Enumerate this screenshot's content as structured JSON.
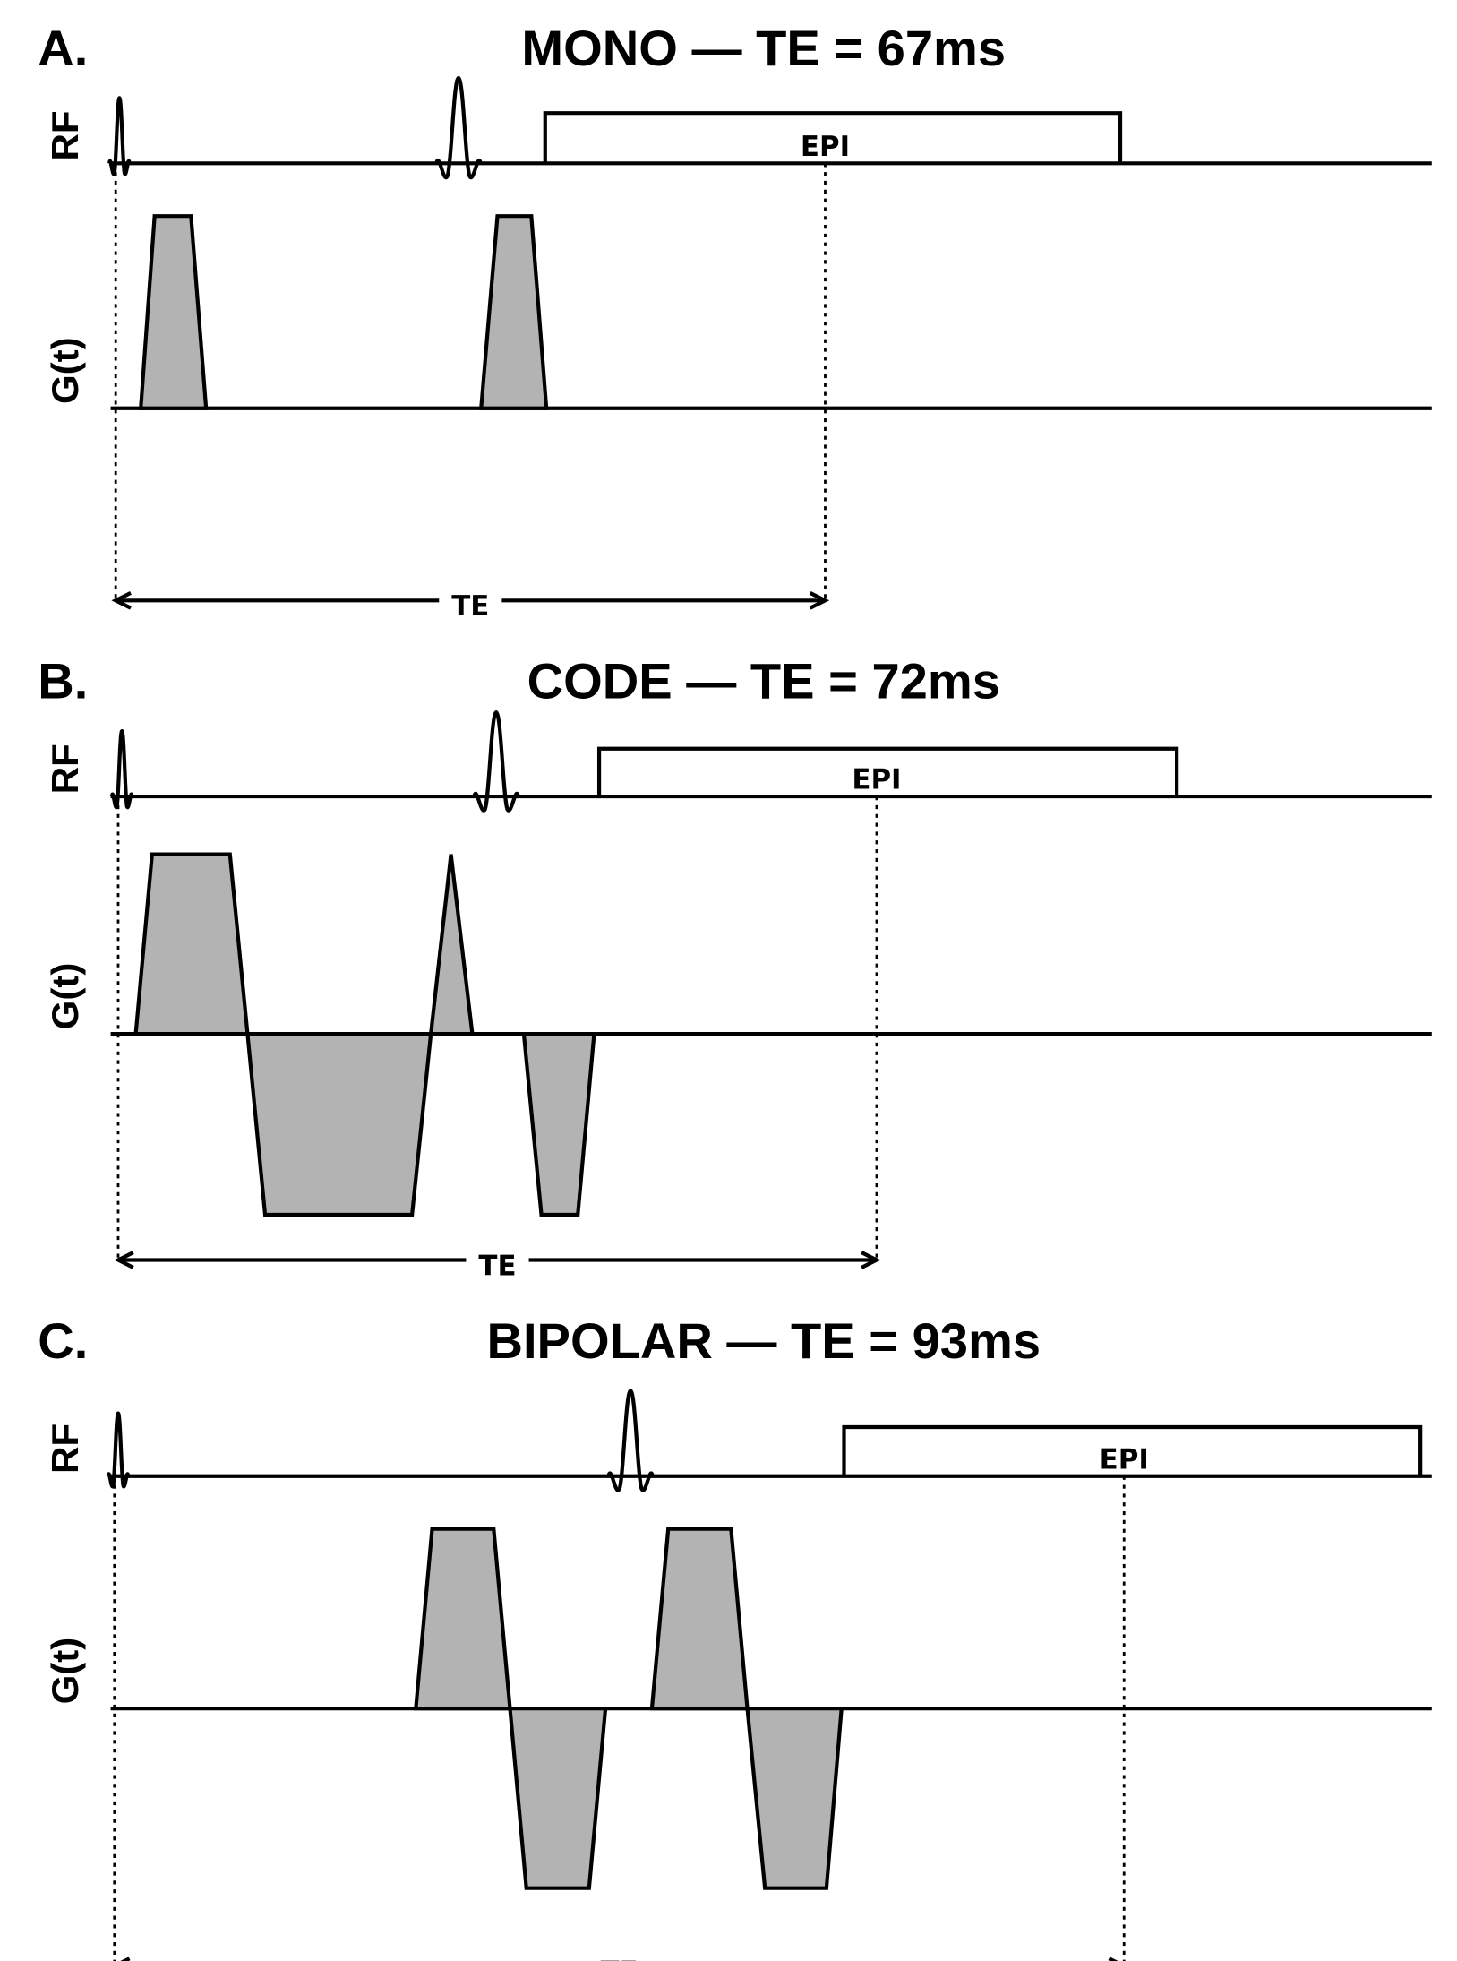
{
  "panels": [
    {
      "letter": "A.",
      "title": "MONO — TE = 67ms",
      "rf_label": "RF",
      "g_label": "G(t)",
      "epi_label": "EPI",
      "te_label": "TE"
    },
    {
      "letter": "B.",
      "title": "CODE — TE = 72ms",
      "rf_label": "RF",
      "g_label": "G(t)",
      "epi_label": "EPI",
      "te_label": "TE"
    },
    {
      "letter": "C.",
      "title": "BIPOLAR — TE = 93ms",
      "rf_label": "RF",
      "g_label": "G(t)",
      "epi_label": "EPI",
      "te_label": "TE"
    }
  ],
  "colors": {
    "gradient_fill": "#b3b3b3",
    "line": "#000000"
  }
}
